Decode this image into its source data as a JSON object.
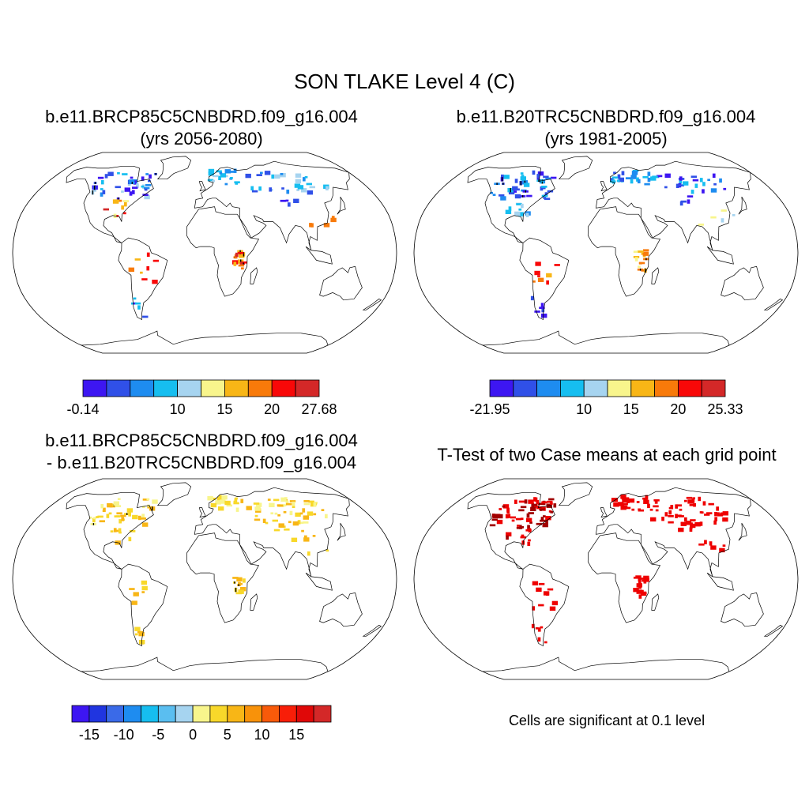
{
  "figure": {
    "title": "SON TLAKE Level 4 (C)",
    "note": "Cells are significant at 0.1 level"
  },
  "chart_data": [
    {
      "type": "heatmap",
      "id": "p1",
      "title_line1": "b.e11.BRCP85C5CNBDRD.f09_g16.004",
      "title_line2": "(yrs 2056-2080)",
      "colorbar": {
        "colors": [
          "#3d16f2",
          "#3050e8",
          "#1e8cf0",
          "#16bef0",
          "#a6d4f0",
          "#f8f58c",
          "#f8b616",
          "#f87a0a",
          "#f80808",
          "#d42828"
        ],
        "tick_labels": [
          "-0.14",
          "10",
          "15",
          "20",
          "27.68"
        ],
        "tick_boundaries": [
          0,
          4,
          6,
          8,
          10
        ]
      },
      "regions": [
        {
          "name": "canada",
          "lon": [
            -125,
            -60
          ],
          "lat": [
            43,
            66
          ],
          "n": 42,
          "colors": [
            1,
            2,
            3,
            4,
            0,
            1
          ],
          "dark": true
        },
        {
          "name": "us-east",
          "lon": [
            -98,
            -72
          ],
          "lat": [
            28,
            43
          ],
          "n": 10,
          "colors": [
            5,
            6,
            7,
            8,
            9
          ]
        },
        {
          "name": "scandinavia",
          "lon": [
            5,
            40
          ],
          "lat": [
            55,
            68
          ],
          "n": 18,
          "colors": [
            2,
            3,
            4
          ]
        },
        {
          "name": "russia",
          "lon": [
            45,
            135
          ],
          "lat": [
            48,
            66
          ],
          "n": 30,
          "colors": [
            3,
            4,
            2,
            1
          ]
        },
        {
          "name": "central-asia",
          "lon": [
            70,
            100
          ],
          "lat": [
            38,
            46
          ],
          "n": 4,
          "colors": [
            0,
            1
          ]
        },
        {
          "name": "east-africa",
          "lon": [
            28,
            38
          ],
          "lat": [
            -15,
            3
          ],
          "n": 16,
          "colors": [
            6,
            7,
            8,
            9
          ],
          "dark": true
        },
        {
          "name": "south-america",
          "lon": [
            -70,
            -45
          ],
          "lat": [
            -25,
            0
          ],
          "n": 8,
          "colors": [
            6,
            7,
            8
          ]
        },
        {
          "name": "patagonia",
          "lon": [
            -74,
            -65
          ],
          "lat": [
            -52,
            -35
          ],
          "n": 6,
          "colors": [
            0,
            1,
            3
          ]
        },
        {
          "name": "asia-south",
          "lon": [
            85,
            125
          ],
          "lat": [
            20,
            35
          ],
          "n": 5,
          "colors": [
            7,
            8
          ]
        }
      ]
    },
    {
      "type": "heatmap",
      "id": "p2",
      "title_line1": "b.e11.B20TRC5CNBDRD.f09_g16.004",
      "title_line2": "(yrs 1981-2005)",
      "colorbar": {
        "colors": [
          "#3d16f2",
          "#3050e8",
          "#1e8cf0",
          "#16bef0",
          "#a6d4f0",
          "#f8f58c",
          "#f8b616",
          "#f87a0a",
          "#f80808",
          "#d42828"
        ],
        "tick_labels": [
          "-21.95",
          "10",
          "15",
          "20",
          "25.33"
        ],
        "tick_boundaries": [
          0,
          4,
          6,
          8,
          10
        ]
      },
      "regions": [
        {
          "name": "canada",
          "lon": [
            -125,
            -60
          ],
          "lat": [
            43,
            66
          ],
          "n": 44,
          "colors": [
            0,
            1,
            2,
            3,
            1
          ],
          "dark": true
        },
        {
          "name": "us-east",
          "lon": [
            -98,
            -72
          ],
          "lat": [
            28,
            43
          ],
          "n": 10,
          "colors": [
            2,
            3,
            4
          ]
        },
        {
          "name": "scandinavia",
          "lon": [
            5,
            40
          ],
          "lat": [
            55,
            68
          ],
          "n": 18,
          "colors": [
            1,
            2,
            3
          ]
        },
        {
          "name": "russia",
          "lon": [
            45,
            135
          ],
          "lat": [
            48,
            66
          ],
          "n": 30,
          "colors": [
            1,
            2,
            3,
            0
          ]
        },
        {
          "name": "central-asia",
          "lon": [
            70,
            100
          ],
          "lat": [
            38,
            46
          ],
          "n": 4,
          "colors": [
            0,
            1
          ]
        },
        {
          "name": "east-africa",
          "lon": [
            28,
            38
          ],
          "lat": [
            -15,
            3
          ],
          "n": 16,
          "colors": [
            5,
            6,
            7
          ],
          "dark": true
        },
        {
          "name": "south-america",
          "lon": [
            -70,
            -45
          ],
          "lat": [
            -25,
            0
          ],
          "n": 8,
          "colors": [
            6,
            7,
            8
          ]
        },
        {
          "name": "patagonia",
          "lon": [
            -74,
            -65
          ],
          "lat": [
            -52,
            -35
          ],
          "n": 6,
          "colors": [
            0,
            1
          ]
        },
        {
          "name": "asia-south",
          "lon": [
            85,
            125
          ],
          "lat": [
            20,
            35
          ],
          "n": 5,
          "colors": [
            4,
            5
          ]
        }
      ]
    },
    {
      "type": "heatmap",
      "id": "p3",
      "title_line1": "b.e11.BRCP85C5CNBDRD.f09_g16.004",
      "title_line2": "- b.e11.B20TRC5CNBDRD.f09_g16.004",
      "colorbar": {
        "colors": [
          "#3d16f2",
          "#2035e0",
          "#3a6ae8",
          "#1e8cf0",
          "#16bef0",
          "#5abef0",
          "#a6d4f0",
          "#f8f58c",
          "#f8d82a",
          "#f8b616",
          "#f8920a",
          "#f85a0a",
          "#f81e08",
          "#e00808",
          "#d42828"
        ],
        "tick_labels": [
          "-15",
          "-10",
          "-5",
          "0",
          "5",
          "10",
          "15"
        ],
        "tick_boundaries": [
          1,
          3,
          5,
          7,
          9,
          11,
          13
        ]
      },
      "regions": [
        {
          "name": "canada",
          "lon": [
            -125,
            -60
          ],
          "lat": [
            43,
            66
          ],
          "n": 40,
          "colors": [
            7,
            8,
            9
          ],
          "dark": true
        },
        {
          "name": "us-east",
          "lon": [
            -98,
            -72
          ],
          "lat": [
            28,
            43
          ],
          "n": 8,
          "colors": [
            8,
            9
          ]
        },
        {
          "name": "scandinavia",
          "lon": [
            5,
            40
          ],
          "lat": [
            55,
            68
          ],
          "n": 18,
          "colors": [
            7,
            8
          ]
        },
        {
          "name": "russia",
          "lon": [
            45,
            135
          ],
          "lat": [
            45,
            68
          ],
          "n": 50,
          "colors": [
            7,
            8,
            9
          ]
        },
        {
          "name": "central-asia",
          "lon": [
            70,
            100
          ],
          "lat": [
            38,
            46
          ],
          "n": 8,
          "colors": [
            8,
            9
          ]
        },
        {
          "name": "east-africa",
          "lon": [
            28,
            38
          ],
          "lat": [
            -15,
            3
          ],
          "n": 12,
          "colors": [
            8,
            9
          ],
          "dark": true
        },
        {
          "name": "south-america",
          "lon": [
            -70,
            -45
          ],
          "lat": [
            -25,
            0
          ],
          "n": 6,
          "colors": [
            8,
            9
          ]
        },
        {
          "name": "patagonia",
          "lon": [
            -74,
            -65
          ],
          "lat": [
            -52,
            -35
          ],
          "n": 6,
          "colors": [
            8,
            9
          ]
        },
        {
          "name": "asia-south",
          "lon": [
            85,
            125
          ],
          "lat": [
            20,
            35
          ],
          "n": 6,
          "colors": [
            8,
            9
          ]
        }
      ]
    },
    {
      "type": "heatmap",
      "id": "p4",
      "title_line1": "T-Test of two Case means at each grid point",
      "title_line2": "",
      "colorbar": null,
      "palette": [
        "#ee0000",
        "#a00000"
      ],
      "regions": [
        {
          "name": "canada",
          "lon": [
            -125,
            -60
          ],
          "lat": [
            43,
            66
          ],
          "n": 60,
          "colors": [
            0,
            1
          ]
        },
        {
          "name": "us-east",
          "lon": [
            -98,
            -72
          ],
          "lat": [
            28,
            43
          ],
          "n": 14,
          "colors": [
            0,
            1
          ]
        },
        {
          "name": "scandinavia",
          "lon": [
            5,
            40
          ],
          "lat": [
            55,
            68
          ],
          "n": 22,
          "colors": [
            0
          ]
        },
        {
          "name": "russia",
          "lon": [
            45,
            135
          ],
          "lat": [
            45,
            68
          ],
          "n": 55,
          "colors": [
            0
          ]
        },
        {
          "name": "central-asia",
          "lon": [
            70,
            100
          ],
          "lat": [
            38,
            46
          ],
          "n": 8,
          "colors": [
            0
          ]
        },
        {
          "name": "east-africa",
          "lon": [
            28,
            38
          ],
          "lat": [
            -15,
            3
          ],
          "n": 18,
          "colors": [
            0
          ]
        },
        {
          "name": "south-america",
          "lon": [
            -70,
            -45
          ],
          "lat": [
            -25,
            0
          ],
          "n": 10,
          "colors": [
            0
          ]
        },
        {
          "name": "patagonia",
          "lon": [
            -74,
            -65
          ],
          "lat": [
            -52,
            -35
          ],
          "n": 6,
          "colors": [
            0
          ]
        },
        {
          "name": "asia-south",
          "lon": [
            85,
            125
          ],
          "lat": [
            20,
            35
          ],
          "n": 6,
          "colors": [
            0
          ]
        }
      ]
    }
  ]
}
